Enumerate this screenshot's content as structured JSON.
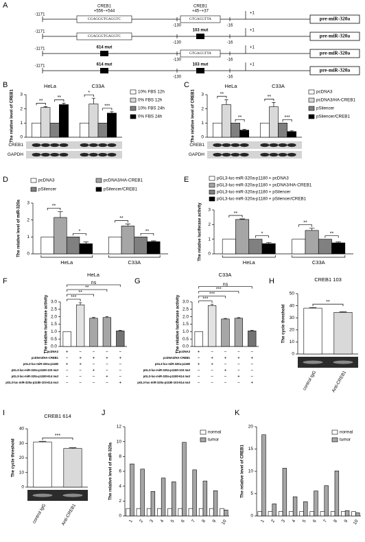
{
  "diagram": {
    "panel": "A",
    "rows": [
      {
        "start": "-1171",
        "site1": {
          "text": "CGAGGGTGAGGTC",
          "mutated": false,
          "label": "CREB1",
          "position": "+556~+544"
        },
        "site2": {
          "text": "GTGACGTTA",
          "mutated": false,
          "label": "CREB1",
          "position": "+45~+37"
        },
        "marks": [
          "-130",
          "-16",
          "+1"
        ],
        "gene": "pre-miR-320a"
      },
      {
        "start": "-1171",
        "site1": {
          "text": "CGAGGGTGAGGTC",
          "mutated": false
        },
        "site2": {
          "text": "103 mut",
          "mutated": true
        },
        "marks": [
          "-130",
          "-16",
          "+1"
        ],
        "gene": "pre-miR-320a"
      },
      {
        "start": "-1171",
        "site1": {
          "text": "614 mut",
          "mutated": true
        },
        "site2": {
          "text": "GTGACGTTA",
          "mutated": false
        },
        "marks": [
          "-130",
          "-16",
          "+1"
        ],
        "gene": "pre-miR-320a"
      },
      {
        "start": "-1171",
        "site1": {
          "text": "614 mut",
          "mutated": true
        },
        "site2": {
          "text": "103 mut",
          "mutated": true
        },
        "marks": [
          "-130",
          "-16",
          "+1"
        ],
        "gene": "pre-miR-320a"
      }
    ]
  },
  "chart_data": [
    {
      "type": "bar",
      "panel": "B",
      "ylabel": "The relative level of CREB1",
      "categories": [
        "HeLa",
        "C33A"
      ],
      "series": [
        {
          "name": "10% FBS 12h",
          "color": "#ffffff",
          "values": [
            1,
            1
          ]
        },
        {
          "name": "0% FBS 12h",
          "color": "#d9d9d9",
          "values": [
            2.1,
            2.35
          ],
          "errors": [
            0.06,
            0.4
          ]
        },
        {
          "name": "10% FBS 24h",
          "color": "#808080",
          "values": [
            1,
            1
          ]
        },
        {
          "name": "0% FBS 24h",
          "color": "#000000",
          "values": [
            2.3,
            1.7
          ],
          "errors": [
            0.1,
            0.1
          ]
        }
      ],
      "ylim": [
        0,
        3
      ],
      "yticks": [
        0,
        1,
        2,
        3
      ],
      "significance": [
        [
          "**",
          "**"
        ],
        [
          "*",
          "***"
        ]
      ],
      "blot_labels": [
        "CREB1",
        "GAPDH"
      ],
      "legend": "right"
    },
    {
      "type": "bar",
      "panel": "C",
      "ylabel": "The relative level of CREB1",
      "categories": [
        "HeLa",
        "C33A"
      ],
      "series": [
        {
          "name": "pcDNA3",
          "color": "#ffffff",
          "values": [
            1,
            1
          ]
        },
        {
          "name": "pcDNA3/HA-CREB1",
          "color": "#d9d9d9",
          "values": [
            2.3,
            2.15
          ],
          "errors": [
            0.35,
            0.3
          ]
        },
        {
          "name": "pSilencer",
          "color": "#808080",
          "values": [
            1,
            1
          ]
        },
        {
          "name": "pSilencer/CREB1",
          "color": "#000000",
          "values": [
            0.5,
            0.4
          ],
          "errors": [
            0.05,
            0.05
          ]
        }
      ],
      "ylim": [
        0,
        3
      ],
      "yticks": [
        0,
        1,
        2,
        3
      ],
      "significance": [
        [
          "**",
          "**"
        ],
        [
          "**",
          "***"
        ]
      ],
      "blot_labels": [
        "CREB1",
        "GAPDH"
      ],
      "legend": "right"
    },
    {
      "type": "bar",
      "panel": "D",
      "ylabel": "The relative level of miR-320a",
      "categories": [
        "HeLa",
        "C33A"
      ],
      "series": [
        {
          "name": "pcDNA3",
          "color": "#ffffff",
          "values": [
            1,
            1
          ]
        },
        {
          "name": "pcDNA3/HA-CREB1",
          "color": "#a6a6a6",
          "values": [
            2.15,
            1.65
          ],
          "errors": [
            0.35,
            0.12
          ]
        },
        {
          "name": "pSilencer",
          "color": "#808080",
          "values": [
            1,
            1
          ]
        },
        {
          "name": "pSilencer/CREB1",
          "color": "#000000",
          "values": [
            0.6,
            0.72
          ],
          "errors": [
            0.1,
            0.05
          ]
        }
      ],
      "ylim": [
        0,
        3
      ],
      "yticks": [
        0,
        1,
        2,
        3
      ],
      "significance": [
        [
          "**",
          "*"
        ],
        [
          "**",
          "**"
        ]
      ],
      "legend": "top"
    },
    {
      "type": "bar",
      "panel": "E",
      "ylabel": "The relative luciferase activity",
      "categories": [
        "HeLa",
        "C33A"
      ],
      "series": [
        {
          "name": "pGL3-luc-miR-320a-p1180 + pcDNA3",
          "color": "#ffffff",
          "values": [
            1,
            1
          ]
        },
        {
          "name": "pGL3-luc-miR-320a-p1180 + pcDNA3/HA-CREB1",
          "color": "#a6a6a6",
          "values": [
            2.35,
            1.6
          ],
          "errors": [
            0.04,
            0.15
          ]
        },
        {
          "name": "pGL3-luc-miR-320a-p1180 + pSilencer",
          "color": "#808080",
          "values": [
            1,
            1
          ]
        },
        {
          "name": "pGL3-luc-miR-320a-p1180 + pSilencer/CREB1",
          "color": "#000000",
          "values": [
            0.7,
            0.75
          ],
          "errors": [
            0.07,
            0.06
          ]
        }
      ],
      "ylim": [
        0,
        3
      ],
      "yticks": [
        0,
        1,
        2,
        3
      ],
      "significance": [
        [
          "**",
          "*"
        ],
        [
          "**",
          "**"
        ]
      ],
      "legend": "top"
    },
    {
      "type": "bar",
      "panel": "F",
      "title": "HeLa",
      "ylabel": "The relative luciferase activity",
      "values": [
        1,
        2.8,
        1.9,
        1.95,
        1.05
      ],
      "errors": [
        null,
        0.15,
        0.05,
        0.06,
        0.03
      ],
      "colors": [
        "#ffffff",
        "#e3e3e3",
        "#a6a6a6",
        "#a6a6a6",
        "#737373"
      ],
      "ylim": [
        0,
        3
      ],
      "yticks": [
        {
          "value": 0,
          "label": "0.0"
        },
        {
          "value": 0.5,
          "label": "0.5"
        },
        {
          "value": 1,
          "label": "1.0"
        },
        {
          "value": 1.5,
          "label": "1.5"
        },
        {
          "value": 2,
          "label": "2.0"
        },
        {
          "value": 2.5,
          "label": "2.5"
        },
        {
          "value": 3,
          "label": "3.0"
        }
      ],
      "significance": [
        "***",
        "**",
        "**",
        "ns"
      ],
      "conditions": [
        {
          "label": "pcDNA3",
          "signs": [
            "+",
            "−",
            "−",
            "−",
            "−"
          ]
        },
        {
          "label": "pcDNA3/HA-CREB1",
          "signs": [
            "−",
            "+",
            "+",
            "+",
            "+"
          ]
        },
        {
          "label": "pGL3-luc-miR-320a-p1180",
          "signs": [
            "+",
            "+",
            "−",
            "−",
            "−"
          ]
        },
        {
          "label": "pGL3-luc-miR-320a-p1180-103 mut",
          "signs": [
            "−",
            "−",
            "+",
            "−",
            "−"
          ]
        },
        {
          "label": "pGL3-luc-miR-320a-p1180-614 mut",
          "signs": [
            "−",
            "−",
            "−",
            "+",
            "−"
          ]
        },
        {
          "label": "pGL3-luc-miR-320a-p1180-103-614 mut",
          "signs": [
            "−",
            "−",
            "−",
            "−",
            "+"
          ]
        }
      ]
    },
    {
      "type": "bar",
      "panel": "G",
      "title": "C33A",
      "ylabel": "The relative luciferase activity",
      "values": [
        1,
        2.75,
        1.85,
        1.9,
        1.05
      ],
      "errors": [
        null,
        0.08,
        0.04,
        0.04,
        0.03
      ],
      "colors": [
        "#ffffff",
        "#e3e3e3",
        "#a6a6a6",
        "#a6a6a6",
        "#737373"
      ],
      "ylim": [
        0,
        3
      ],
      "yticks": [
        {
          "value": 0,
          "label": "0.0"
        },
        {
          "value": 0.5,
          "label": "0.5"
        },
        {
          "value": 1,
          "label": "1.0"
        },
        {
          "value": 1.5,
          "label": "1.5"
        },
        {
          "value": 2,
          "label": "2.0"
        },
        {
          "value": 2.5,
          "label": "2.5"
        },
        {
          "value": 3,
          "label": "3.0"
        }
      ],
      "significance": [
        "***",
        "***",
        "***",
        "ns"
      ],
      "conditions": [
        {
          "label": "pcDNA3",
          "signs": [
            "+",
            "−",
            "−",
            "−",
            "−"
          ]
        },
        {
          "label": "pcDNA3/HA-CREB1",
          "signs": [
            "−",
            "+",
            "+",
            "+",
            "+"
          ]
        },
        {
          "label": "pGL3-luc-miR-320a-p1180",
          "signs": [
            "+",
            "+",
            "−",
            "−",
            "−"
          ]
        },
        {
          "label": "pGL3-luc-miR-320a-p1180-103 mut",
          "signs": [
            "−",
            "−",
            "+",
            "−",
            "−"
          ]
        },
        {
          "label": "pGL3-luc-miR-320a-p1180-614 mut",
          "signs": [
            "−",
            "−",
            "−",
            "+",
            "−"
          ]
        },
        {
          "label": "pGL3-luc-miR-320a-p1180-103-614 mut",
          "signs": [
            "−",
            "−",
            "−",
            "−",
            "+"
          ]
        }
      ]
    },
    {
      "type": "bar",
      "panel": "H",
      "title": "CREB1 103",
      "ylabel": "The cycle threshold",
      "categories": [
        "control IgG",
        "Anti-CREB1"
      ],
      "values": [
        38,
        34.5
      ],
      "errors": [
        0.5,
        0.5
      ],
      "colors": [
        "#ffffff",
        "#d9d9d9"
      ],
      "ylim": [
        0,
        50
      ],
      "yticks": [
        0,
        10,
        20,
        30,
        40,
        50
      ],
      "significance": [
        "**"
      ]
    },
    {
      "type": "bar",
      "panel": "I",
      "title": "CREB1 614",
      "ylabel": "The cycle threshold",
      "categories": [
        "control IgG",
        "Anti-CREB1"
      ],
      "values": [
        31,
        26.5
      ],
      "errors": [
        0.4,
        0.5
      ],
      "colors": [
        "#ffffff",
        "#d9d9d9"
      ],
      "ylim": [
        0,
        40
      ],
      "yticks": [
        0,
        10,
        20,
        30,
        40
      ],
      "significance": [
        "***"
      ]
    },
    {
      "type": "bar",
      "panel": "J",
      "ylabel": "The relative level of miR-320a",
      "categories": [
        "1",
        "2",
        "3",
        "4",
        "5",
        "6",
        "7",
        "8",
        "9",
        "10"
      ],
      "series": [
        {
          "name": "normal",
          "color": "#ffffff",
          "values": [
            1,
            1,
            1,
            1,
            1,
            1,
            1,
            1,
            1,
            1
          ]
        },
        {
          "name": "tumor",
          "color": "#a6a6a6",
          "values": [
            7,
            6.3,
            3.3,
            5.1,
            4.6,
            9.9,
            6.2,
            4.7,
            3.4,
            0.8
          ]
        }
      ],
      "ylim": [
        0,
        12
      ],
      "yticks": [
        0,
        2,
        4,
        6,
        8,
        10,
        12
      ],
      "legend": "upper right"
    },
    {
      "type": "bar",
      "panel": "K",
      "ylabel": "The relative level of CREB1",
      "categories": [
        "1",
        "2",
        "3",
        "4",
        "5",
        "6",
        "7",
        "8",
        "9",
        "10"
      ],
      "series": [
        {
          "name": "normal",
          "color": "#ffffff",
          "values": [
            1,
            1,
            1,
            1,
            1,
            1,
            1,
            1,
            1,
            1
          ]
        },
        {
          "name": "tumor",
          "color": "#a6a6a6",
          "values": [
            18.2,
            2.7,
            10.7,
            4.3,
            3.2,
            5.6,
            6.8,
            10.1,
            1.2,
            0.7
          ]
        }
      ],
      "ylim": [
        0,
        20
      ],
      "yticks": [
        0,
        5,
        10,
        15,
        20
      ],
      "legend": "upper right"
    }
  ]
}
